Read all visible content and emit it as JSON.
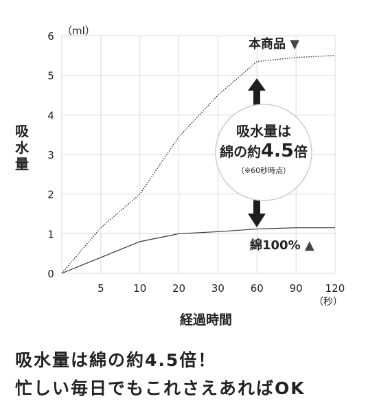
{
  "chart_data": {
    "type": "line",
    "categories": [
      "0",
      "5",
      "10",
      "20",
      "30",
      "60",
      "90",
      "120"
    ],
    "y_unit": "（ml）",
    "x_unit": "（秒）",
    "ylabel": "吸水量",
    "xlabel": "経過時間",
    "ylim": [
      0,
      6
    ],
    "yticks": [
      "0",
      "1",
      "2",
      "3",
      "4",
      "5",
      "6"
    ],
    "grid": true,
    "series": [
      {
        "name": "本商品",
        "marker": "▼",
        "style": "dotted",
        "values": [
          0,
          1.15,
          2.0,
          3.45,
          4.5,
          5.35,
          5.45,
          5.5
        ]
      },
      {
        "name": "綿100%",
        "marker": "▲",
        "style": "solid",
        "values": [
          0,
          0.4,
          0.8,
          1.0,
          1.05,
          1.12,
          1.15,
          1.15
        ]
      }
    ],
    "annotation": {
      "line1": "吸水量は",
      "line2a": "綿の約",
      "line2b": "4.5",
      "line2c": "倍",
      "note": "（※60秒時点）"
    }
  },
  "captions": {
    "line1": "吸水量は綿の約4.5倍！",
    "line2": "忙しい毎日でもこれさえあればOK"
  },
  "colors": {
    "text": "#222222",
    "grid": "#d9d9d9",
    "circle_border": "#cccccc"
  }
}
